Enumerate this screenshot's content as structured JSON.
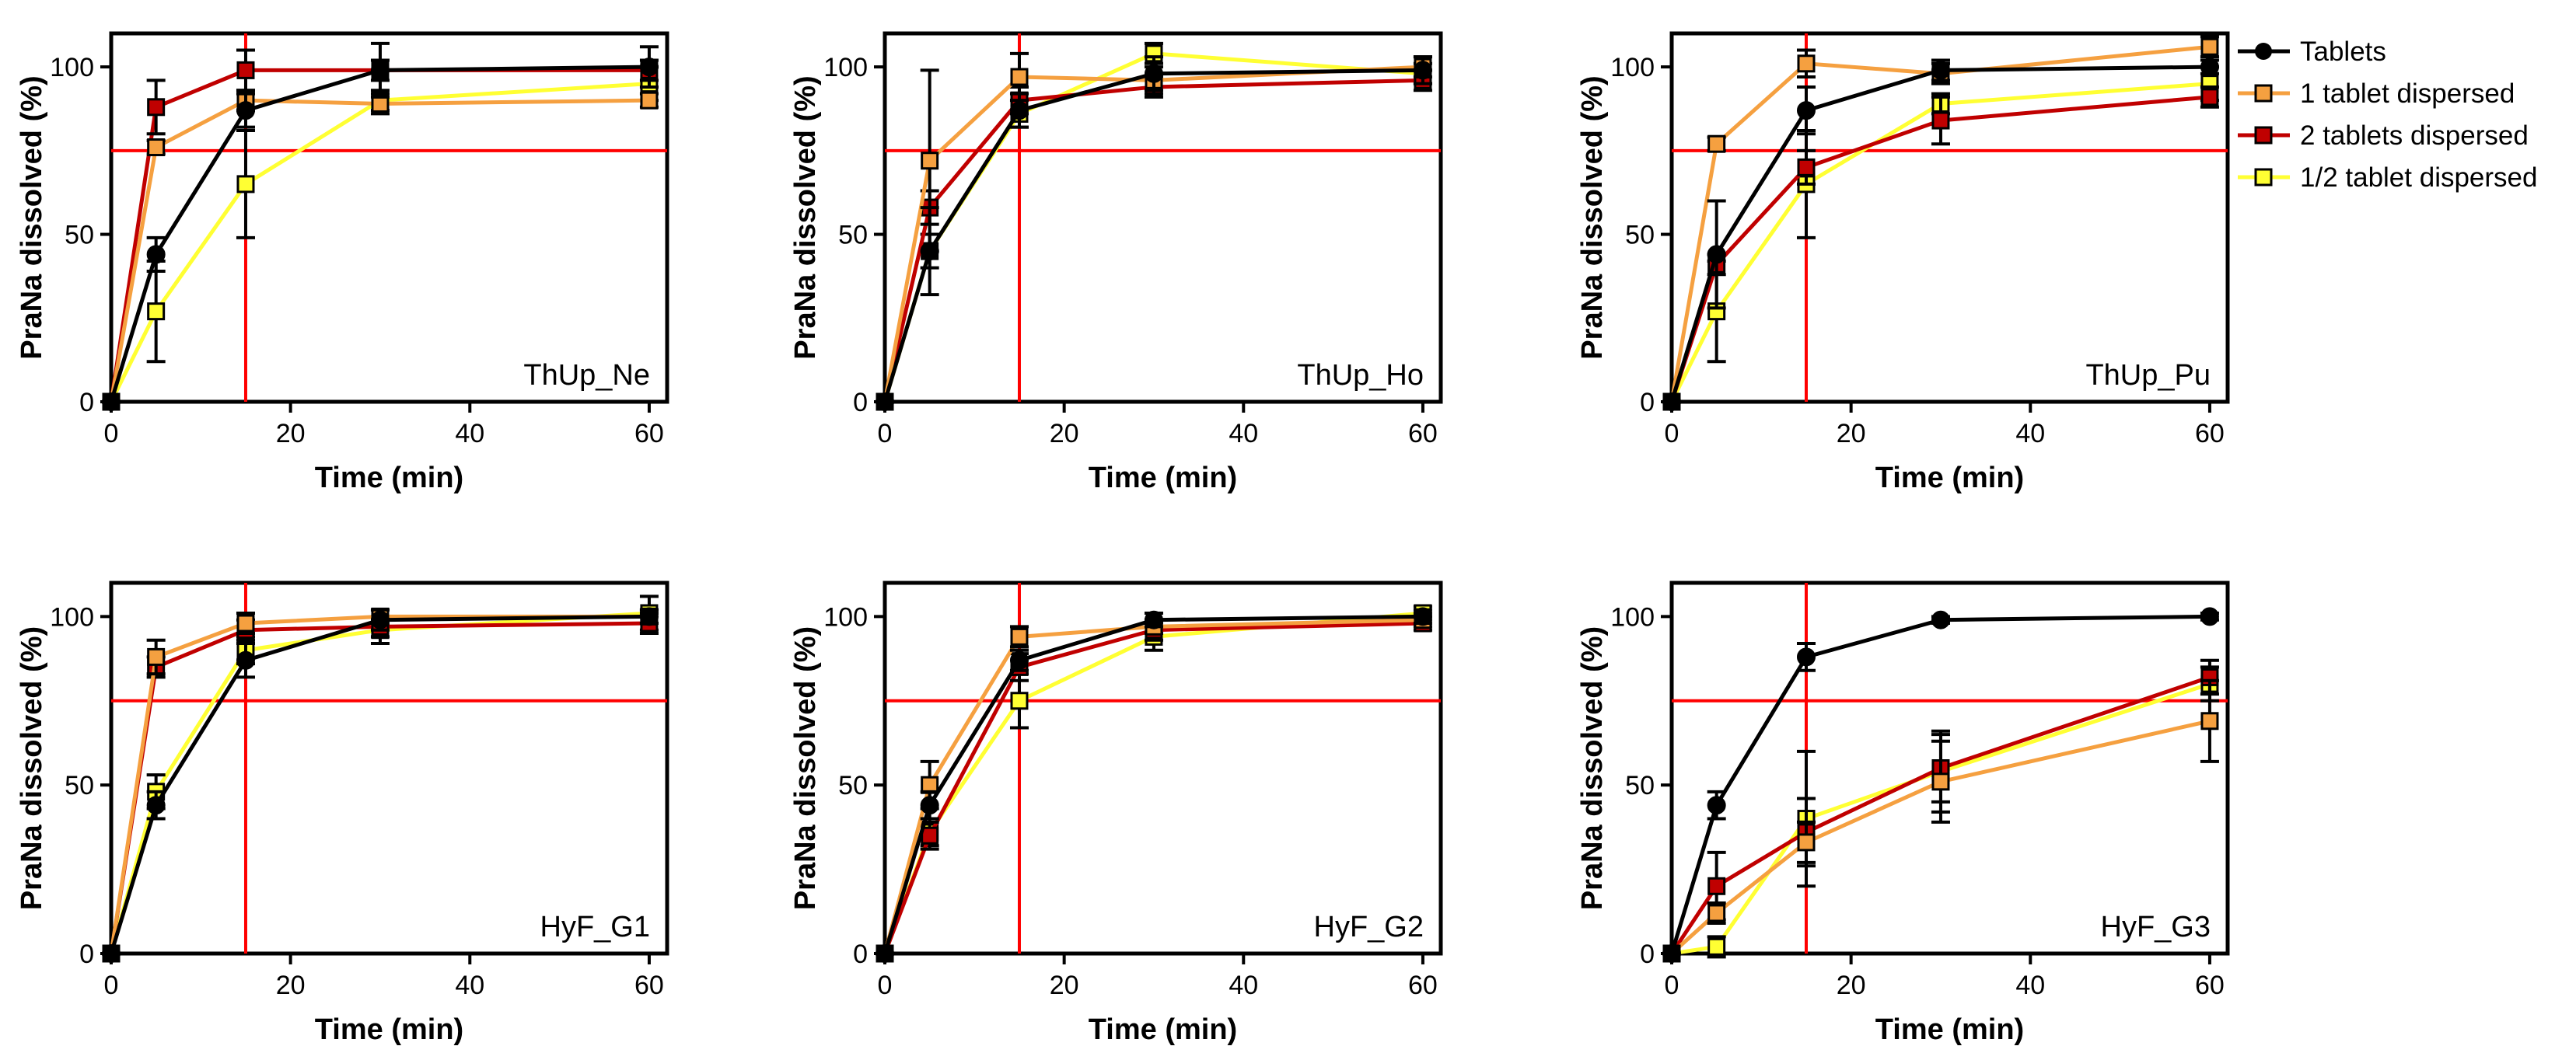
{
  "legend": {
    "placement": "right of top-right panel",
    "entries": [
      {
        "name": "Tablets",
        "color": "#000000",
        "marker": "circle"
      },
      {
        "name": "1 tablet dispersed",
        "color": "#f5a040",
        "marker": "square"
      },
      {
        "name": "2 tablets dispersed",
        "color": "#c00000",
        "marker": "square"
      },
      {
        "name": "1/2 tablet dispersed",
        "color": "#ffff33",
        "marker": "square"
      }
    ]
  },
  "colors": {
    "reference_lines": "#ff0000",
    "marker_border": "#000000",
    "errorbar": "#000000",
    "axis": "#000000"
  },
  "chart_data": [
    {
      "type": "line",
      "panel": "ThUp_Ne",
      "xlabel": "Time (min)",
      "ylabel": "PraNa dissolved (%)",
      "xlim": [
        0,
        62
      ],
      "ylim": [
        0,
        110
      ],
      "xticks": [
        0,
        20,
        40,
        60
      ],
      "yticks": [
        0,
        50,
        100
      ],
      "reference_lines": {
        "x": 15,
        "y": 75
      },
      "x": [
        0,
        5,
        15,
        30,
        60
      ],
      "series": [
        {
          "name": "Tablets",
          "values": [
            0,
            44,
            87,
            99,
            100
          ],
          "errors": [
            0,
            5,
            5,
            8,
            6
          ]
        },
        {
          "name": "1 tablet dispersed",
          "values": [
            0,
            76,
            90,
            89,
            90
          ],
          "errors": [
            0,
            2,
            3,
            3,
            2
          ]
        },
        {
          "name": "2 tablets dispersed",
          "values": [
            0,
            88,
            99,
            99,
            99
          ],
          "errors": [
            0,
            8,
            6,
            3,
            3
          ]
        },
        {
          "name": "1/2 tablet dispersed",
          "values": [
            0,
            27,
            65,
            90,
            95
          ],
          "errors": [
            0,
            15,
            16,
            3,
            5
          ]
        }
      ]
    },
    {
      "type": "line",
      "panel": "ThUp_Ho",
      "xlabel": "Time (min)",
      "ylabel": "PraNa dissolved (%)",
      "xlim": [
        0,
        62
      ],
      "ylim": [
        0,
        110
      ],
      "xticks": [
        0,
        20,
        40,
        60
      ],
      "yticks": [
        0,
        50,
        100
      ],
      "reference_lines": {
        "x": 15,
        "y": 75
      },
      "x": [
        0,
        5,
        15,
        30,
        60
      ],
      "series": [
        {
          "name": "Tablets",
          "values": [
            0,
            45,
            87,
            98,
            99
          ],
          "errors": [
            0,
            13,
            5,
            5,
            4
          ]
        },
        {
          "name": "1 tablet dispersed",
          "values": [
            0,
            72,
            97,
            96,
            100
          ],
          "errors": [
            0,
            27,
            7,
            4,
            3
          ]
        },
        {
          "name": "2 tablets dispersed",
          "values": [
            0,
            58,
            90,
            94,
            96
          ],
          "errors": [
            0,
            5,
            4,
            3,
            3
          ]
        },
        {
          "name": "1/2 tablet dispersed",
          "values": [
            0,
            45,
            86,
            104,
            98
          ],
          "errors": [
            0,
            5,
            4,
            3,
            3
          ]
        }
      ]
    },
    {
      "type": "line",
      "panel": "ThUp_Pu",
      "xlabel": "Time (min)",
      "ylabel": "PraNa dissolved (%)",
      "xlim": [
        0,
        62
      ],
      "ylim": [
        0,
        110
      ],
      "xticks": [
        0,
        20,
        40,
        60
      ],
      "yticks": [
        0,
        50,
        100
      ],
      "reference_lines": {
        "x": 15,
        "y": 75
      },
      "x": [
        0,
        5,
        15,
        30,
        60
      ],
      "series": [
        {
          "name": "Tablets",
          "values": [
            0,
            44,
            87,
            99,
            100
          ],
          "errors": [
            0,
            16,
            7,
            3,
            2
          ]
        },
        {
          "name": "1 tablet dispersed",
          "values": [
            0,
            77,
            101,
            98,
            106
          ],
          "errors": [
            0,
            2,
            4,
            3,
            3
          ]
        },
        {
          "name": "2 tablets dispersed",
          "values": [
            0,
            41,
            70,
            84,
            91
          ],
          "errors": [
            0,
            3,
            5,
            7,
            3
          ]
        },
        {
          "name": "1/2 tablet dispersed",
          "values": [
            0,
            27,
            65,
            89,
            95
          ],
          "errors": [
            0,
            15,
            16,
            3,
            5
          ]
        }
      ]
    },
    {
      "type": "line",
      "panel": "HyF_G1",
      "xlabel": "Time (min)",
      "ylabel": "PraNa dissolved (%)",
      "xlim": [
        0,
        62
      ],
      "ylim": [
        0,
        110
      ],
      "xticks": [
        0,
        20,
        40,
        60
      ],
      "yticks": [
        0,
        50,
        100
      ],
      "reference_lines": {
        "x": 15,
        "y": 75
      },
      "x": [
        0,
        5,
        15,
        30,
        60
      ],
      "series": [
        {
          "name": "Tablets",
          "values": [
            0,
            44,
            87,
            99,
            100
          ],
          "errors": [
            0,
            4,
            5,
            3,
            2
          ]
        },
        {
          "name": "1 tablet dispersed",
          "values": [
            0,
            88,
            98,
            100,
            100
          ],
          "errors": [
            0,
            5,
            3,
            2,
            2
          ]
        },
        {
          "name": "2 tablets dispersed",
          "values": [
            0,
            85,
            96,
            97,
            98
          ],
          "errors": [
            0,
            3,
            3,
            3,
            3
          ]
        },
        {
          "name": "1/2 tablet dispersed",
          "values": [
            0,
            48,
            90,
            96,
            101
          ],
          "errors": [
            0,
            5,
            4,
            4,
            5
          ]
        }
      ]
    },
    {
      "type": "line",
      "panel": "HyF_G2",
      "xlabel": "Time (min)",
      "ylabel": "PraNa dissolved (%)",
      "xlim": [
        0,
        62
      ],
      "ylim": [
        0,
        110
      ],
      "xticks": [
        0,
        20,
        40,
        60
      ],
      "yticks": [
        0,
        50,
        100
      ],
      "reference_lines": {
        "x": 15,
        "y": 75
      },
      "x": [
        0,
        5,
        15,
        30,
        60
      ],
      "series": [
        {
          "name": "Tablets",
          "values": [
            0,
            44,
            87,
            99,
            100
          ],
          "errors": [
            0,
            4,
            3,
            2,
            2
          ]
        },
        {
          "name": "1 tablet dispersed",
          "values": [
            0,
            50,
            94,
            97,
            99
          ],
          "errors": [
            0,
            7,
            3,
            2,
            2
          ]
        },
        {
          "name": "2 tablets dispersed",
          "values": [
            0,
            35,
            85,
            96,
            98
          ],
          "errors": [
            0,
            4,
            4,
            3,
            2
          ]
        },
        {
          "name": "1/2 tablet dispersed",
          "values": [
            0,
            36,
            75,
            94,
            101
          ],
          "errors": [
            0,
            4,
            8,
            4,
            2
          ]
        }
      ]
    },
    {
      "type": "line",
      "panel": "HyF_G3",
      "xlabel": "Time (min)",
      "ylabel": "PraNa dissolved (%)",
      "xlim": [
        0,
        62
      ],
      "ylim": [
        0,
        110
      ],
      "xticks": [
        0,
        20,
        40,
        60
      ],
      "yticks": [
        0,
        50,
        100
      ],
      "reference_lines": {
        "x": 15,
        "y": 75
      },
      "x": [
        0,
        5,
        15,
        30,
        60
      ],
      "series": [
        {
          "name": "Tablets",
          "values": [
            0,
            44,
            88,
            99,
            100
          ],
          "errors": [
            0,
            4,
            4,
            1,
            1
          ]
        },
        {
          "name": "1 tablet dispersed",
          "values": [
            0,
            12,
            33,
            51,
            69
          ],
          "errors": [
            0,
            3,
            6,
            12,
            12
          ]
        },
        {
          "name": "2 tablets dispersed",
          "values": [
            0,
            20,
            36,
            55,
            82
          ],
          "errors": [
            0,
            10,
            10,
            10,
            5
          ]
        },
        {
          "name": "1/2 tablet dispersed",
          "values": [
            0,
            2,
            40,
            54,
            80
          ],
          "errors": [
            0,
            3,
            20,
            12,
            5
          ]
        }
      ]
    }
  ]
}
